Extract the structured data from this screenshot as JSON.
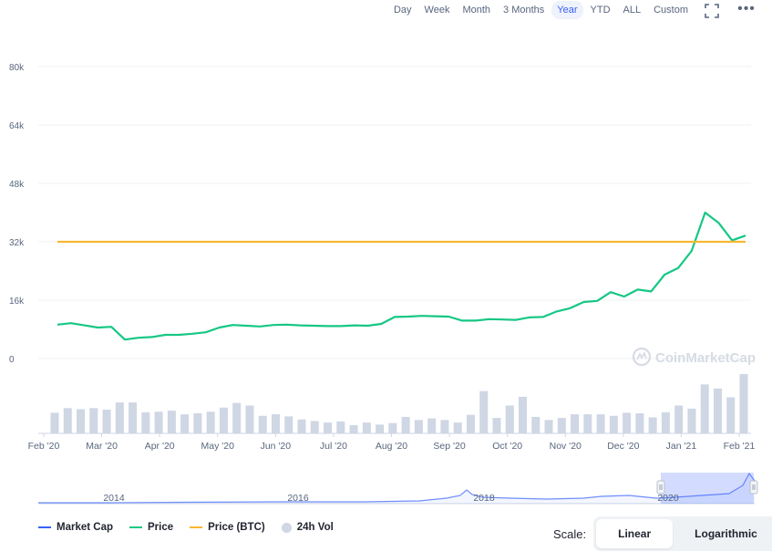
{
  "toolbar": {
    "ranges": [
      "Day",
      "Week",
      "Month",
      "3 Months",
      "Year",
      "YTD",
      "ALL",
      "Custom"
    ],
    "active_range": "Year",
    "fullscreen_icon": "expand-icon",
    "more_icon": "more-horizontal-icon",
    "more_label": "•••"
  },
  "watermark": "CoinMarketCap",
  "legend": [
    {
      "label": "Market Cap",
      "color": "#3861fb",
      "shape": "line"
    },
    {
      "label": "Price",
      "color": "#16c784",
      "shape": "line"
    },
    {
      "label": "Price (BTC)",
      "color": "#f7b733",
      "shape": "line"
    },
    {
      "label": "24h Vol",
      "color": "#cfd6e4",
      "shape": "dot"
    }
  ],
  "scale": {
    "label": "Scale:",
    "options": [
      "Linear",
      "Logarithmic"
    ],
    "active": "Linear"
  },
  "chart_data": {
    "type": "line",
    "y_ticks": [
      "80k",
      "64k",
      "48k",
      "32k",
      "16k",
      "0"
    ],
    "ylim": [
      0,
      80000
    ],
    "x_ticks": [
      "Feb '20",
      "Mar '20",
      "Apr '20",
      "May '20",
      "Jun '20",
      "Jul '20",
      "Aug '20",
      "Sep '20",
      "Oct '20",
      "Nov '20",
      "Dec '20",
      "Jan '21",
      "Feb '21"
    ],
    "grid": true,
    "series": [
      {
        "name": "Price",
        "color": "#16c784",
        "values": [
          9300,
          9700,
          9100,
          8500,
          8700,
          5200,
          5700,
          5900,
          6500,
          6500,
          6800,
          7200,
          8500,
          9200,
          9000,
          8800,
          9200,
          9300,
          9100,
          9000,
          8900,
          8900,
          9100,
          9000,
          9500,
          11400,
          11500,
          11700,
          11600,
          11500,
          10400,
          10400,
          10800,
          10700,
          10600,
          11300,
          11400,
          12900,
          13800,
          15500,
          15800,
          18200,
          17000,
          18900,
          18400,
          23000,
          24800,
          29500,
          40000,
          37200,
          32400,
          33700
        ]
      },
      {
        "name": "Price (BTC)",
        "color": "#f7b733",
        "values": [
          32000,
          32000
        ]
      }
    ],
    "volume": {
      "name": "24h Vol",
      "color": "#cfd6e4",
      "values": [
        40,
        49,
        47,
        49,
        46,
        60,
        60,
        41,
        42,
        44,
        37,
        39,
        42,
        50,
        59,
        54,
        34,
        37,
        33,
        27,
        24,
        21,
        23,
        16,
        21,
        17,
        20,
        32,
        26,
        29,
        26,
        21,
        36,
        82,
        30,
        54,
        71,
        32,
        26,
        30,
        37,
        37,
        37,
        34,
        40,
        39,
        31,
        41,
        54,
        48,
        95,
        87,
        70,
        115
      ]
    },
    "navigator": {
      "labels": [
        "2014",
        "2016",
        "2018",
        "2020"
      ]
    }
  }
}
